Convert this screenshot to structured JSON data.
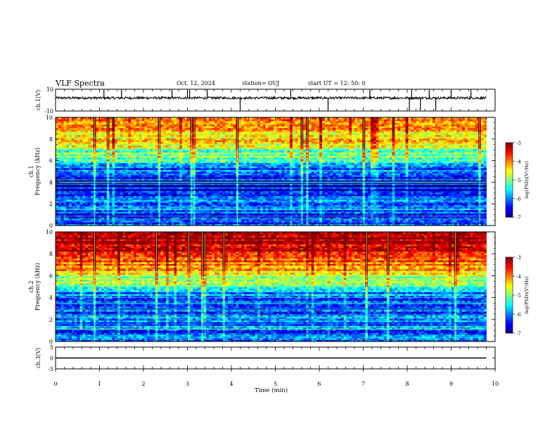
{
  "header": {
    "title": "VLF Spectra",
    "date": "Oct. 12, 2024",
    "station": "station= OUJ",
    "start": "start  UT  =   12: 50: 0"
  },
  "chart_data": [
    {
      "type": "line",
      "name": "ch1-waveform",
      "ylabel": "ch.1(V)",
      "ylim": [
        -10,
        10
      ],
      "yticks": [
        "10",
        "-10"
      ],
      "xlim": [
        0,
        10
      ],
      "baseline": 2,
      "spikes_min": [
        1.1,
        1.5,
        2.65,
        3.0,
        3.05,
        3.45,
        4.2,
        5.35,
        6.2,
        7.15,
        8.05,
        8.1,
        8.3,
        8.5,
        8.65,
        9.0,
        9.45
      ]
    },
    {
      "type": "heatmap",
      "name": "ch1-spectrogram",
      "ylabel": "ch.1\nFrequency (kHz)",
      "ylabel_line1": "ch.1",
      "ylabel_line2": "Frequency (kHz)",
      "ylim": [
        0,
        10
      ],
      "yticks": [
        "0",
        "2",
        "4",
        "6",
        "8",
        "10"
      ],
      "xlim": [
        0,
        9.8
      ],
      "colorbar": {
        "label": "log(PSD)(V²/Hz)",
        "range": [
          -7,
          -3
        ],
        "ticks": [
          "-3",
          "-4",
          "-5",
          "-6",
          "-7"
        ]
      },
      "level_profile": [
        [
          0,
          -6.2
        ],
        [
          1,
          -6.4
        ],
        [
          2,
          -6.1
        ],
        [
          3,
          -6.5
        ],
        [
          4,
          -6.9
        ],
        [
          5,
          -6.3
        ],
        [
          6,
          -5.5
        ],
        [
          7,
          -4.9
        ],
        [
          8,
          -4.4
        ],
        [
          9,
          -4.0
        ],
        [
          10,
          -3.8
        ]
      ]
    },
    {
      "type": "heatmap",
      "name": "ch2-spectrogram",
      "ylabel": "ch.2\nFrequency (kHz)",
      "ylabel_line1": "ch.2",
      "ylabel_line2": "Frequency (kHz)",
      "ylim": [
        0,
        10
      ],
      "yticks": [
        "0",
        "2",
        "4",
        "6",
        "8",
        "10"
      ],
      "xlim": [
        0,
        9.8
      ],
      "colorbar": {
        "label": "log(PSD)(V²/Hz)",
        "range": [
          -7,
          -3
        ],
        "ticks": [
          "-3",
          "-4",
          "-5",
          "-6",
          "-7"
        ]
      },
      "level_profile": [
        [
          0,
          -5.9
        ],
        [
          1,
          -6.2
        ],
        [
          2,
          -6.0
        ],
        [
          3,
          -6.4
        ],
        [
          4,
          -6.2
        ],
        [
          5,
          -5.4
        ],
        [
          6,
          -4.6
        ],
        [
          7,
          -4.0
        ],
        [
          8,
          -3.5
        ],
        [
          9,
          -3.3
        ],
        [
          10,
          -3.2
        ]
      ]
    },
    {
      "type": "line",
      "name": "ch3-waveform",
      "ylabel": "ch.3(V)",
      "ylim": [
        -5,
        5
      ],
      "yticks": [
        "5",
        "0",
        "-5"
      ],
      "xlim": [
        0,
        10
      ],
      "baseline": 0
    }
  ],
  "xaxis": {
    "label": "Time (min)",
    "ticks": [
      "0",
      "1",
      "2",
      "3",
      "4",
      "5",
      "6",
      "7",
      "8",
      "9",
      "10"
    ]
  },
  "colors": {
    "colormap": [
      "#000090",
      "#0000ff",
      "#0080ff",
      "#00ffff",
      "#80ff80",
      "#ffff00",
      "#ff8000",
      "#ff0000",
      "#800000"
    ],
    "trace": "#000000"
  }
}
